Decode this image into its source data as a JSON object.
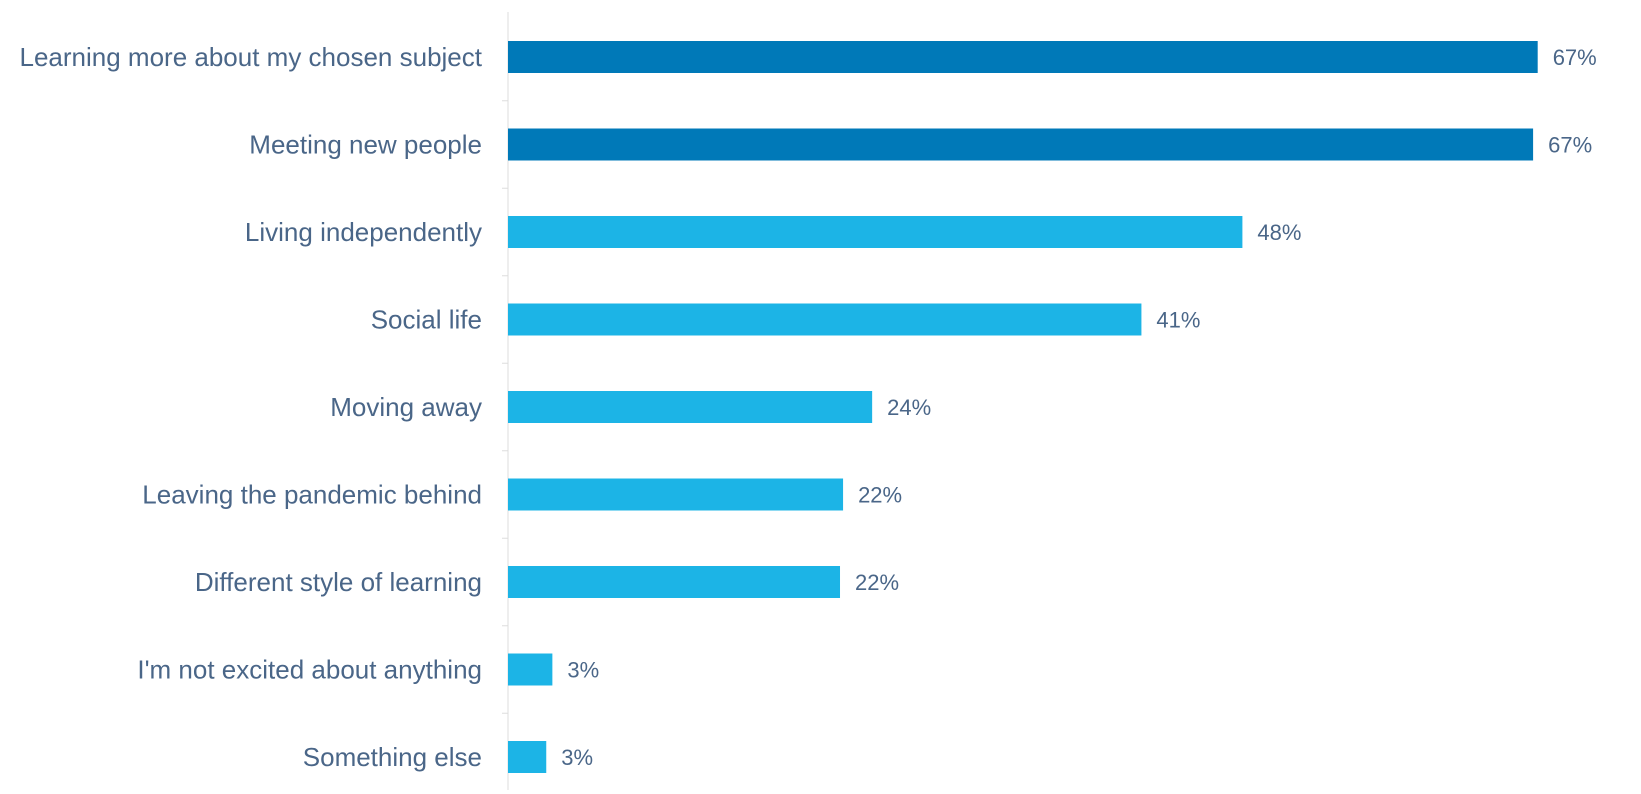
{
  "chart_data": {
    "type": "bar",
    "orientation": "horizontal",
    "title": "",
    "xlabel": "",
    "ylabel": "",
    "categories": [
      "Learning more about my chosen subject",
      "Meeting new people",
      "Living independently",
      "Social life",
      "Moving away",
      "Leaving the pandemic behind",
      "Different style of learning",
      "I'm not excited about anything",
      "Something else"
    ],
    "values": [
      67.3,
      67,
      48,
      41.4,
      23.8,
      21.9,
      21.7,
      2.9,
      2.5
    ],
    "value_labels": [
      "67%",
      "67%",
      "48%",
      "41%",
      "24%",
      "22%",
      "22%",
      "3%",
      "3%"
    ],
    "highlighted": [
      true,
      true,
      false,
      false,
      false,
      false,
      false,
      false,
      false
    ],
    "xlim": [
      0,
      70
    ],
    "grid": false,
    "legend": "none",
    "colors": {
      "highlight": "#0079b8",
      "normal": "#1cb4e6",
      "label": "#4a6688",
      "axis": "#dddddd"
    }
  }
}
